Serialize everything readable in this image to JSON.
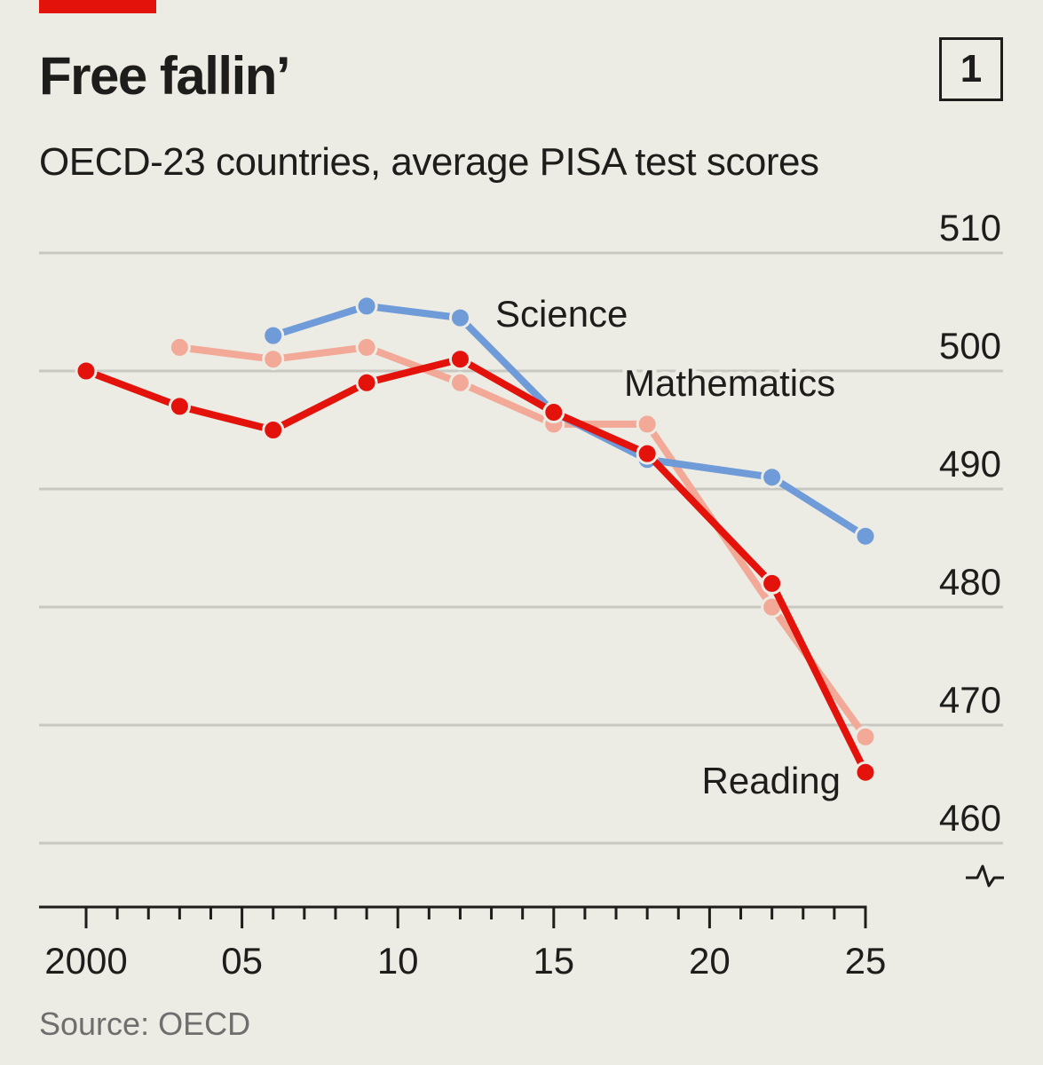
{
  "header": {
    "title": "Free fallin’",
    "chart_number": "1",
    "subtitle": "OECD-23 countries, average PISA test scores"
  },
  "footer": {
    "source": "Source: OECD"
  },
  "colors": {
    "accent": "#e3120b",
    "reading": "#e3120b",
    "mathematics": "#f2a997",
    "science": "#6f9bd8",
    "background": "#ecebe4"
  },
  "chart_data": {
    "type": "line",
    "title": "Free fallin’",
    "subtitle": "OECD-23 countries, average PISA test scores",
    "xlabel": "",
    "ylabel": "",
    "x_ticks": [
      "2000",
      "05",
      "10",
      "15",
      "20",
      "25"
    ],
    "x_tick_values": [
      2000,
      2005,
      2010,
      2015,
      2020,
      2025
    ],
    "xlim": [
      2000,
      2025
    ],
    "y_ticks": [
      460,
      470,
      480,
      490,
      500,
      510
    ],
    "ylim": [
      460,
      510
    ],
    "y_axis_side": "right",
    "y_axis_break": true,
    "grid": true,
    "series": [
      {
        "name": "Mathematics",
        "color": "#f2a997",
        "x": [
          2003,
          2006,
          2009,
          2012,
          2015,
          2018,
          2022,
          2025
        ],
        "y": [
          502,
          501,
          502,
          499,
          495.5,
          495.5,
          480,
          469
        ]
      },
      {
        "name": "Science",
        "color": "#6f9bd8",
        "x": [
          2006,
          2009,
          2012,
          2015,
          2018,
          2022,
          2025
        ],
        "y": [
          503,
          505.5,
          504.5,
          496.5,
          492.5,
          491,
          486
        ]
      },
      {
        "name": "Reading",
        "color": "#e3120b",
        "x": [
          2000,
          2003,
          2006,
          2009,
          2012,
          2015,
          2018,
          2022,
          2025
        ],
        "y": [
          500,
          497,
          495,
          499,
          501,
          496.5,
          493,
          482,
          466
        ]
      }
    ]
  }
}
